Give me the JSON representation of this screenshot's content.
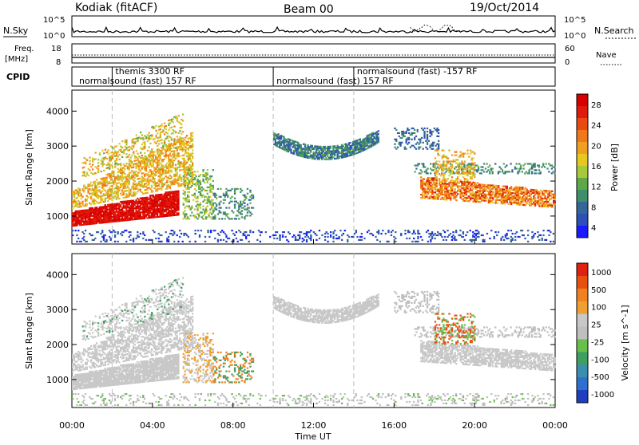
{
  "header": {
    "station": "Kodiak (fitACF)",
    "beam": "Beam 00",
    "date": "19/Oct/2014"
  },
  "noise_panel": {
    "left_label": "N.Sky",
    "left_ticks": [
      "10^5",
      "10^0"
    ],
    "right_label": "N.Search",
    "right_ticks": [
      "10^5",
      "10^0"
    ]
  },
  "freq_panel": {
    "left_label_1": "Freq.",
    "left_label_2": "[MHz]",
    "left_ticks": [
      "18",
      "8"
    ],
    "right_label": "Nave",
    "right_ticks": [
      "60",
      "0"
    ]
  },
  "cpid": {
    "label": "CPID",
    "segments": [
      {
        "text": "normalsound (fast) 157 RF",
        "row": 2,
        "start": 0.2
      },
      {
        "text": "themis 3300 RF",
        "row": 1,
        "start": 2.0
      },
      {
        "text": "normalsound (fast) 157 RF",
        "row": 2,
        "start": 10.0
      },
      {
        "text": "normalsound (fast) -157 RF",
        "row": 1,
        "start": 14.0
      }
    ],
    "dividers": [
      2.0,
      10.0,
      14.0
    ]
  },
  "chart_data": [
    {
      "type": "heatmap",
      "quantity": "power",
      "ylabel": "Slant Range [km]",
      "ylim": [
        200,
        4600
      ],
      "yticks": [
        "1000",
        "2000",
        "3000",
        "4000"
      ],
      "xlim": [
        0,
        24
      ],
      "colorbar_label": "Power [dB]",
      "colorbar_ticks": [
        "4",
        "8",
        "12",
        "16",
        "20",
        "24",
        "28"
      ],
      "colorbar_range": [
        0,
        30
      ],
      "colorbar_colors": [
        "#1a1aff",
        "#2e4fb8",
        "#336699",
        "#3f8f6a",
        "#5fa84a",
        "#a7c93a",
        "#e6c81e",
        "#f0a020",
        "#f07818",
        "#e84a12",
        "#e01a0a",
        "#d80000"
      ]
    },
    {
      "type": "heatmap",
      "quantity": "velocity",
      "ylabel": "Slant Range [km]",
      "ylim": [
        200,
        4600
      ],
      "yticks": [
        "1000",
        "2000",
        "3000",
        "4000"
      ],
      "xlim": [
        0,
        24
      ],
      "colorbar_label": "Velocity [m s^-1]",
      "colorbar_ticks": [
        "1000",
        "500",
        "100",
        "25",
        "-25",
        "-100",
        "-500",
        "-1000"
      ],
      "colorbar_colors": [
        "#1f3fbf",
        "#2f6fd0",
        "#3a8fb0",
        "#3f9f60",
        "#66c04a",
        "#bfbfbf",
        "#c8c8c8",
        "#f0a030",
        "#f08020",
        "#e85010",
        "#e02010"
      ]
    }
  ],
  "xaxis": {
    "ticks": [
      "00:00",
      "04:00",
      "08:00",
      "12:00",
      "16:00",
      "20:00",
      "00:00"
    ],
    "label": "Time UT"
  }
}
